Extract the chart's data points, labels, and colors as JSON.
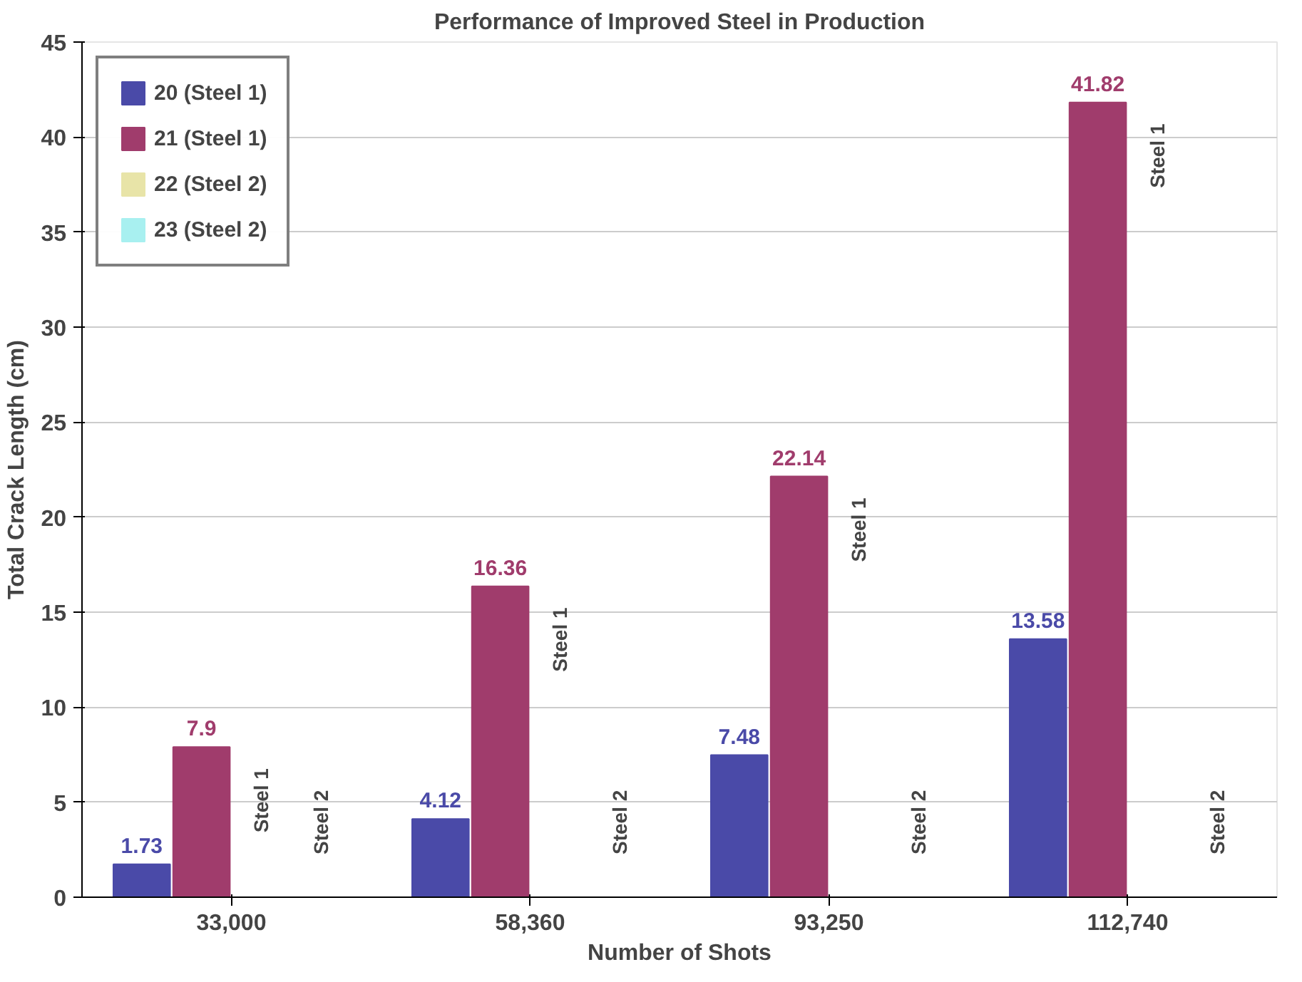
{
  "chart_data": {
    "type": "bar",
    "title": "Performance of Improved Steel in Production",
    "xlabel": "Number of Shots",
    "ylabel": "Total Crack Length (cm)",
    "categories": [
      "33,000",
      "58,360",
      "93,250",
      "112,740"
    ],
    "series": [
      {
        "name": "20 (Steel 1)",
        "color": "#4a4aa8",
        "values": [
          1.73,
          4.12,
          7.48,
          13.58
        ],
        "value_labels": [
          "1.73",
          "4.12",
          "7.48",
          "13.58"
        ]
      },
      {
        "name": "21 (Steel 1)",
        "color": "#a03c6c",
        "values": [
          7.9,
          16.36,
          22.14,
          41.82
        ],
        "value_labels": [
          "7.9",
          "16.36",
          "22.14",
          "41.82"
        ]
      },
      {
        "name": "22 (Steel 2)",
        "color": "#e8e4a8",
        "values": [
          0,
          0,
          0,
          0
        ]
      },
      {
        "name": "23 (Steel 2)",
        "color": "#a8f0f0",
        "values": [
          0,
          0,
          0,
          0
        ]
      }
    ],
    "ylim": [
      0,
      45
    ],
    "yticks": [
      0,
      5,
      10,
      15,
      20,
      25,
      30,
      35,
      40,
      45
    ],
    "grid": "y",
    "legend": "top left",
    "annotations": [
      "Steel 1",
      "Steel 1",
      "Steel 1",
      "Steel 1",
      "Steel 2",
      "Steel 2",
      "Steel 2",
      "Steel 2"
    ]
  }
}
